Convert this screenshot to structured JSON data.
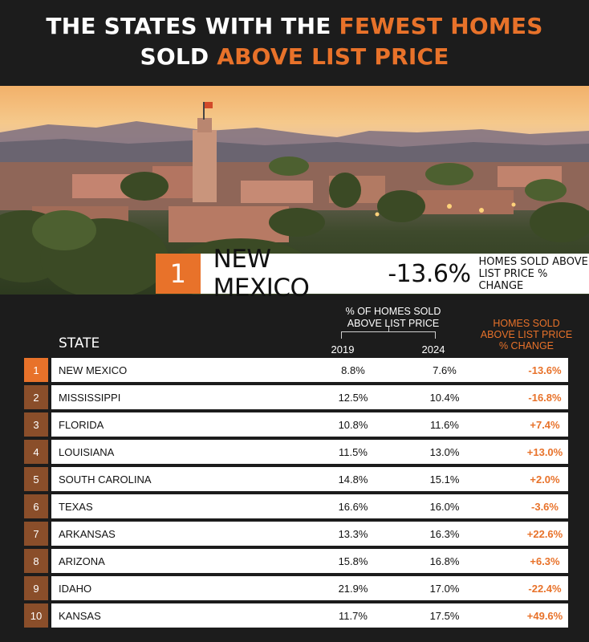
{
  "title": {
    "line1_prefix": "THE STATES WITH THE ",
    "line1_highlight": "FEWEST HOMES",
    "line2_prefix": "SOLD ",
    "line2_highlight": "ABOVE LIST PRICE"
  },
  "highlight": {
    "rank": "1",
    "state": "NEW MEXICO",
    "change": "-13.6%",
    "label_line1": "HOMES SOLD ABOVE",
    "label_line2": "LIST PRICE % CHANGE"
  },
  "colors": {
    "accent": "#e8722a",
    "rank_bg": "#8a4e2a",
    "background": "#1c1c1c"
  },
  "chart_data": {
    "type": "table",
    "headers": {
      "state": "STATE",
      "group_line1": "% OF HOMES SOLD",
      "group_line2": "ABOVE LIST PRICE",
      "year1": "2019",
      "year2": "2024",
      "change_line1": "HOMES SOLD",
      "change_line2": "ABOVE LIST PRICE",
      "change_line3": "% CHANGE"
    },
    "rows": [
      {
        "rank": "1",
        "state": "NEW MEXICO",
        "v2019": "8.8%",
        "v2024": "7.6%",
        "change": "-13.6%"
      },
      {
        "rank": "2",
        "state": "MISSISSIPPI",
        "v2019": "12.5%",
        "v2024": "10.4%",
        "change": "-16.8%"
      },
      {
        "rank": "3",
        "state": "FLORIDA",
        "v2019": "10.8%",
        "v2024": "11.6%",
        "change": "+7.4%"
      },
      {
        "rank": "4",
        "state": "LOUISIANA",
        "v2019": "11.5%",
        "v2024": "13.0%",
        "change": "+13.0%"
      },
      {
        "rank": "5",
        "state": "SOUTH CAROLINA",
        "v2019": "14.8%",
        "v2024": "15.1%",
        "change": "+2.0%"
      },
      {
        "rank": "6",
        "state": "TEXAS",
        "v2019": "16.6%",
        "v2024": "16.0%",
        "change": "-3.6%"
      },
      {
        "rank": "7",
        "state": "ARKANSAS",
        "v2019": "13.3%",
        "v2024": "16.3%",
        "change": "+22.6%"
      },
      {
        "rank": "8",
        "state": "ARIZONA",
        "v2019": "15.8%",
        "v2024": "16.8%",
        "change": "+6.3%"
      },
      {
        "rank": "9",
        "state": "IDAHO",
        "v2019": "21.9%",
        "v2024": "17.0%",
        "change": "-22.4%"
      },
      {
        "rank": "10",
        "state": "KANSAS",
        "v2019": "11.7%",
        "v2024": "17.5%",
        "change": "+49.6%"
      }
    ]
  }
}
